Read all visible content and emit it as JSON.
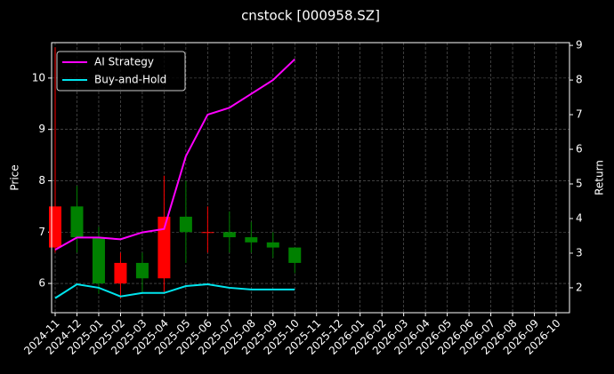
{
  "chart_data": {
    "type": "candlestick",
    "title": "cnstock [000958.SZ]",
    "ylabel": "Price",
    "y2label": "Return",
    "x": [
      "2024-11",
      "2024-12",
      "2025-01",
      "2025-02",
      "2025-03",
      "2025-04",
      "2025-05",
      "2025-06",
      "2025-07",
      "2025-08",
      "2025-09",
      "2025-10"
    ],
    "candles": {
      "open": [
        6.7,
        7.5,
        6.9,
        6.0,
        6.4,
        6.1,
        7.3,
        7.0,
        7.0,
        6.9,
        6.8,
        6.7
      ],
      "high": [
        10.6,
        7.9,
        7.1,
        6.6,
        6.6,
        8.1,
        8.0,
        7.5,
        7.4,
        7.2,
        7.0,
        6.7
      ],
      "low": [
        6.6,
        6.6,
        5.8,
        5.7,
        5.8,
        5.8,
        6.4,
        6.6,
        6.6,
        6.6,
        6.5,
        6.2
      ],
      "close": [
        7.5,
        6.9,
        6.0,
        6.4,
        6.1,
        7.3,
        7.0,
        7.0,
        6.9,
        6.8,
        6.7,
        6.4
      ],
      "up_color": "#ff0000",
      "down_color": "#008000"
    },
    "series": [
      {
        "name": "AI Strategy",
        "color": "#ff00ff",
        "axis": "y2",
        "values": [
          3.1,
          3.45,
          3.45,
          3.4,
          3.6,
          3.7,
          5.8,
          7.0,
          7.2,
          7.6,
          8.0,
          8.6
        ]
      },
      {
        "name": "Buy-and-Hold",
        "color": "#00e5ee",
        "axis": "y2",
        "values": [
          1.7,
          2.1,
          2.0,
          1.75,
          1.85,
          1.85,
          2.05,
          2.1,
          2.0,
          1.95,
          1.95,
          1.95
        ]
      }
    ],
    "xlim": [
      "2024-11",
      "2026-10"
    ],
    "xticks": [
      "2024-11",
      "2024-12",
      "2025-01",
      "2025-02",
      "2025-03",
      "2025-04",
      "2025-05",
      "2025-06",
      "2025-07",
      "2025-08",
      "2025-09",
      "2025-10",
      "2025-11",
      "2025-12",
      "2026-01",
      "2026-02",
      "2026-03",
      "2026-04",
      "2026-05",
      "2026-06",
      "2026-07",
      "2026-08",
      "2026-09",
      "2026-10"
    ],
    "ylim": [
      5.43,
      10.69
    ],
    "yticks": [
      6,
      7,
      8,
      9,
      10
    ],
    "y2lim": [
      1.28,
      9.08
    ],
    "y2ticks": [
      2,
      3,
      4,
      5,
      6,
      7,
      8,
      9
    ],
    "grid": true,
    "legend": "upper left"
  }
}
